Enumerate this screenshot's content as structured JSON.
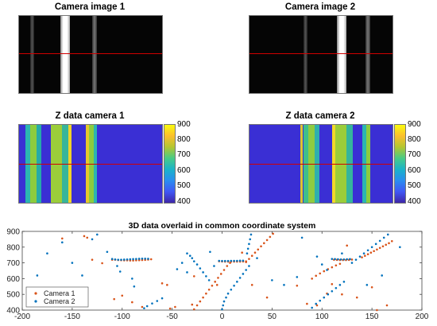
{
  "panels": {
    "cam1_title": "Camera image 1",
    "cam2_title": "Camera image 2",
    "z1_title": "Z data camera 1",
    "z2_title": "Z data camera 2"
  },
  "colorbar_ticks": [
    "900",
    "800",
    "700",
    "600",
    "500",
    "400"
  ],
  "colorbar_range": [
    400,
    900
  ],
  "colors": {
    "camera1": "#d95319",
    "camera2": "#0072bd",
    "redline": "#d10000",
    "zmap_background": "#3a2fd4"
  },
  "chart_data": {
    "type": "scatter",
    "title": "3D data overlaid in common coordinate system",
    "xlabel": "",
    "ylabel": "",
    "xlim": [
      -200,
      200
    ],
    "ylim": [
      400,
      900
    ],
    "xticks": [
      "-200",
      "-150",
      "-100",
      "-50",
      "0",
      "50",
      "100",
      "150",
      "200"
    ],
    "yticks": [
      "900",
      "800",
      "700",
      "600",
      "500",
      "400"
    ],
    "grid": false,
    "legend_position": "bottom-left",
    "series": [
      {
        "name": "Camera 1",
        "points": [
          [
            -110,
            720
          ],
          [
            -107,
            720
          ],
          [
            -104,
            718
          ],
          [
            -101,
            717
          ],
          [
            -98,
            716
          ],
          [
            -95,
            716
          ],
          [
            -92,
            715
          ],
          [
            -89,
            715
          ],
          [
            -86,
            716
          ],
          [
            -83,
            717
          ],
          [
            -80,
            718
          ],
          [
            -77,
            719
          ],
          [
            -74,
            721
          ],
          [
            -71,
            723
          ],
          [
            -3,
            710
          ],
          [
            0,
            709
          ],
          [
            3,
            708
          ],
          [
            6,
            708
          ],
          [
            9,
            708
          ],
          [
            12,
            708
          ],
          [
            15,
            708
          ],
          [
            18,
            708
          ],
          [
            21,
            709
          ],
          [
            24,
            710
          ],
          [
            112,
            720
          ],
          [
            115,
            719
          ],
          [
            118,
            718
          ],
          [
            121,
            718
          ],
          [
            124,
            718
          ],
          [
            127,
            719
          ],
          [
            130,
            721
          ],
          [
            -28,
            405
          ],
          [
            -25,
            430
          ],
          [
            -22,
            455
          ],
          [
            -19,
            480
          ],
          [
            -16,
            505
          ],
          [
            -13,
            530
          ],
          [
            -10,
            555
          ],
          [
            -7,
            580
          ],
          [
            -4,
            605
          ],
          [
            -1,
            630
          ],
          [
            2,
            655
          ],
          [
            5,
            680
          ],
          [
            8,
            700
          ],
          [
            24,
            705
          ],
          [
            27,
            725
          ],
          [
            30,
            745
          ],
          [
            33,
            765
          ],
          [
            36,
            785
          ],
          [
            39,
            805
          ],
          [
            42,
            825
          ],
          [
            45,
            845
          ],
          [
            48,
            865
          ],
          [
            51,
            885
          ],
          [
            90,
            600
          ],
          [
            94,
            618
          ],
          [
            98,
            633
          ],
          [
            102,
            647
          ],
          [
            106,
            660
          ],
          [
            110,
            672
          ],
          [
            114,
            684
          ],
          [
            118,
            694
          ],
          [
            140,
            735
          ],
          [
            143,
            745
          ],
          [
            146,
            755
          ],
          [
            149,
            765
          ],
          [
            152,
            775
          ],
          [
            155,
            785
          ],
          [
            158,
            795
          ],
          [
            161,
            805
          ],
          [
            164,
            815
          ],
          [
            167,
            825
          ],
          [
            170,
            838
          ],
          [
            -160,
            855
          ],
          [
            -138,
            870
          ],
          [
            -130,
            720
          ],
          [
            -135,
            860
          ],
          [
            -120,
            698
          ],
          [
            -108,
            470
          ],
          [
            -100,
            492
          ],
          [
            -90,
            450
          ],
          [
            -80,
            420
          ],
          [
            -55,
            560
          ],
          [
            -52,
            410
          ],
          [
            -60,
            570
          ],
          [
            -47,
            420
          ],
          [
            -30,
            435
          ],
          [
            -28,
            615
          ],
          [
            -5,
            560
          ],
          [
            20,
            765
          ],
          [
            30,
            560
          ],
          [
            45,
            480
          ],
          [
            75,
            555
          ],
          [
            85,
            440
          ],
          [
            95,
            430
          ],
          [
            105,
            505
          ],
          [
            110,
            565
          ],
          [
            120,
            500
          ],
          [
            125,
            810
          ],
          [
            135,
            480
          ],
          [
            150,
            545
          ],
          [
            155,
            400
          ],
          [
            165,
            430
          ]
        ]
      },
      {
        "name": "Camera 2",
        "points": [
          [
            -110,
            725
          ],
          [
            -107,
            722
          ],
          [
            -104,
            720
          ],
          [
            -101,
            720
          ],
          [
            -98,
            721
          ],
          [
            -95,
            722
          ],
          [
            -92,
            723
          ],
          [
            -89,
            724
          ],
          [
            -86,
            725
          ],
          [
            -83,
            726
          ],
          [
            -80,
            727
          ],
          [
            -77,
            727
          ],
          [
            -74,
            726
          ],
          [
            -3,
            713
          ],
          [
            0,
            712
          ],
          [
            3,
            712
          ],
          [
            6,
            712
          ],
          [
            9,
            713
          ],
          [
            12,
            713
          ],
          [
            15,
            713
          ],
          [
            18,
            714
          ],
          [
            21,
            714
          ],
          [
            110,
            725
          ],
          [
            113,
            724
          ],
          [
            116,
            723
          ],
          [
            119,
            722
          ],
          [
            122,
            722
          ],
          [
            125,
            723
          ],
          [
            128,
            724
          ],
          [
            -35,
            760
          ],
          [
            -32,
            745
          ],
          [
            -30,
            730
          ],
          [
            -28,
            710
          ],
          [
            -25,
            690
          ],
          [
            -22,
            665
          ],
          [
            -19,
            640
          ],
          [
            -16,
            615
          ],
          [
            -13,
            590
          ],
          [
            0,
            405
          ],
          [
            1,
            430
          ],
          [
            2,
            455
          ],
          [
            4,
            480
          ],
          [
            6,
            505
          ],
          [
            9,
            530
          ],
          [
            12,
            555
          ],
          [
            15,
            580
          ],
          [
            18,
            605
          ],
          [
            21,
            630
          ],
          [
            24,
            655
          ],
          [
            27,
            680
          ],
          [
            25,
            760
          ],
          [
            26,
            790
          ],
          [
            27,
            820
          ],
          [
            28,
            850
          ],
          [
            29,
            880
          ],
          [
            90,
            415
          ],
          [
            94,
            440
          ],
          [
            98,
            460
          ],
          [
            102,
            480
          ],
          [
            106,
            500
          ],
          [
            110,
            520
          ],
          [
            114,
            540
          ],
          [
            118,
            560
          ],
          [
            122,
            580
          ],
          [
            130,
            700
          ],
          [
            134,
            720
          ],
          [
            138,
            740
          ],
          [
            142,
            760
          ],
          [
            146,
            780
          ],
          [
            150,
            800
          ],
          [
            154,
            820
          ],
          [
            158,
            840
          ],
          [
            162,
            860
          ],
          [
            166,
            880
          ],
          [
            -60,
            475
          ],
          [
            -65,
            458
          ],
          [
            -70,
            442
          ],
          [
            -75,
            425
          ],
          [
            -78,
            412
          ],
          [
            -175,
            760
          ],
          [
            -185,
            620
          ],
          [
            -160,
            830
          ],
          [
            -150,
            700
          ],
          [
            -140,
            620
          ],
          [
            -130,
            850
          ],
          [
            -125,
            880
          ],
          [
            -115,
            770
          ],
          [
            -105,
            680
          ],
          [
            -102,
            645
          ],
          [
            -90,
            600
          ],
          [
            -88,
            550
          ],
          [
            -45,
            660
          ],
          [
            -40,
            700
          ],
          [
            -35,
            640
          ],
          [
            -12,
            770
          ],
          [
            -8,
            680
          ],
          [
            35,
            730
          ],
          [
            50,
            590
          ],
          [
            62,
            560
          ],
          [
            75,
            610
          ],
          [
            80,
            860
          ],
          [
            95,
            740
          ],
          [
            100,
            690
          ],
          [
            105,
            655
          ],
          [
            120,
            760
          ],
          [
            145,
            560
          ],
          [
            160,
            620
          ],
          [
            178,
            800
          ]
        ]
      }
    ]
  }
}
